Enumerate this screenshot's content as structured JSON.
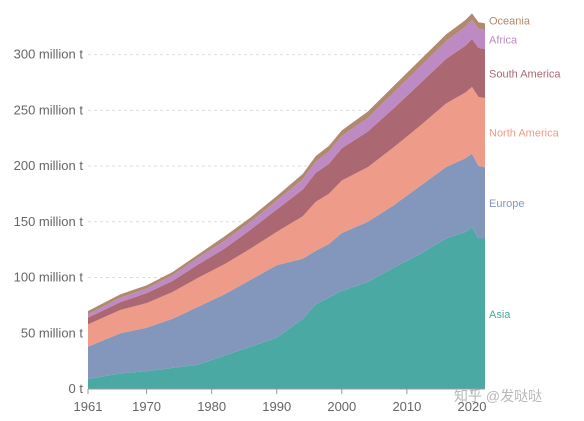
{
  "chart_data": {
    "type": "area",
    "stacked": true,
    "title": "",
    "xlabel": "",
    "ylabel": "",
    "xlim": [
      1961,
      2022
    ],
    "ylim": [
      0,
      340000000
    ],
    "yticks": [
      {
        "value": 0,
        "label": "0 t"
      },
      {
        "value": 50000000,
        "label": "50 million t"
      },
      {
        "value": 100000000,
        "label": "100 million t"
      },
      {
        "value": 150000000,
        "label": "150 million t"
      },
      {
        "value": 200000000,
        "label": "200 million t"
      },
      {
        "value": 250000000,
        "label": "250 million t"
      },
      {
        "value": 300000000,
        "label": "300 million t"
      }
    ],
    "xticks": [
      1961,
      1970,
      1980,
      1990,
      2000,
      2010,
      2020
    ],
    "grid": "horizontal dashed",
    "legend": "labels at right end of each area",
    "x": [
      1961,
      1966,
      1970,
      1974,
      1978,
      1982,
      1986,
      1990,
      1994,
      1996,
      1998,
      2000,
      2004,
      2008,
      2012,
      2016,
      2019,
      2020,
      2021,
      2022
    ],
    "series": [
      {
        "name": "Asia",
        "color": "#4aa9a2",
        "values": [
          9,
          14,
          16,
          19,
          22,
          30,
          38,
          46,
          63,
          76,
          82,
          88,
          96,
          109,
          121,
          135,
          141,
          145,
          135,
          135
        ]
      },
      {
        "name": "Europe",
        "color": "#8297bb",
        "values": [
          29,
          36,
          39,
          44,
          52,
          55,
          60,
          65,
          54,
          48,
          48,
          52,
          54,
          56,
          61,
          64,
          66,
          66,
          65,
          64
        ]
      },
      {
        "name": "North America",
        "color": "#ee9b89",
        "values": [
          20,
          21,
          22,
          24,
          26,
          27,
          28,
          30,
          38,
          44,
          45,
          47,
          49,
          52,
          54,
          57,
          59,
          60,
          62,
          62
        ]
      },
      {
        "name": "South America",
        "color": "#ab6873",
        "values": [
          6,
          7,
          9,
          10,
          12,
          14,
          17,
          20,
          24,
          26,
          27,
          29,
          32,
          35,
          38,
          40,
          42,
          43,
          44,
          44
        ]
      },
      {
        "name": "Africa",
        "color": "#bd8ac4",
        "values": [
          3,
          4,
          4,
          5,
          6,
          7,
          7,
          8,
          9,
          10,
          11,
          11,
          12,
          14,
          15,
          16,
          17,
          17,
          17,
          17
        ]
      },
      {
        "name": "Oceania",
        "color": "#b0896f",
        "values": [
          3,
          3,
          3,
          3,
          3,
          4,
          4,
          4,
          5,
          5,
          5,
          5,
          6,
          6,
          6,
          6,
          6,
          6,
          6,
          6
        ]
      }
    ],
    "value_unit": "million t"
  },
  "watermark": "知乎 @发哒哒"
}
